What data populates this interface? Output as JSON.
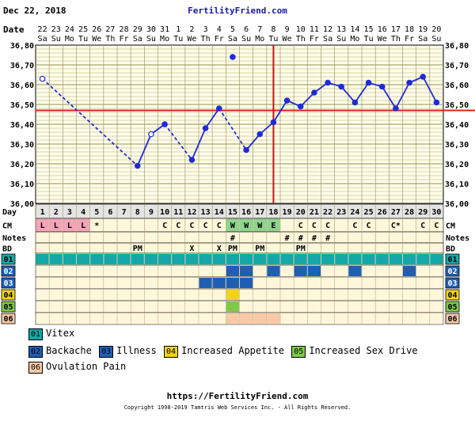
{
  "header": {
    "date": "Dec 22, 2018",
    "site": "FertilityFriend.com"
  },
  "chart_data": {
    "type": "line",
    "title": "",
    "ylim": [
      36.0,
      36.8
    ],
    "y_ticks": [
      "36,80",
      "36,70",
      "36,60",
      "36,50",
      "36,40",
      "36,30",
      "36,20",
      "36,10",
      "36,00"
    ],
    "dates": [
      "22",
      "23",
      "24",
      "25",
      "26",
      "27",
      "28",
      "29",
      "30",
      "31",
      "1",
      "2",
      "3",
      "4",
      "5",
      "6",
      "7",
      "8",
      "9",
      "10",
      "11",
      "12",
      "13",
      "14",
      "15",
      "16",
      "17",
      "18",
      "19",
      "20"
    ],
    "weekdays": [
      "Sa",
      "Su",
      "Mo",
      "Tu",
      "We",
      "Th",
      "Fr",
      "Sa",
      "Su",
      "Mo",
      "Tu",
      "We",
      "Th",
      "Fr",
      "Sa",
      "Su",
      "Mo",
      "Tu",
      "We",
      "Th",
      "Fr",
      "Sa",
      "Su",
      "Mo",
      "Tu",
      "We",
      "Th",
      "Fr",
      "Sa",
      "Su"
    ],
    "days": [
      "1",
      "2",
      "3",
      "4",
      "5",
      "6",
      "7",
      "8",
      "9",
      "10",
      "11",
      "12",
      "13",
      "14",
      "15",
      "16",
      "17",
      "18",
      "19",
      "20",
      "21",
      "22",
      "23",
      "24",
      "25",
      "26",
      "27",
      "28",
      "29",
      "30"
    ],
    "temps": [
      36.63,
      null,
      null,
      null,
      null,
      null,
      null,
      36.19,
      36.35,
      36.4,
      null,
      36.22,
      36.38,
      36.48,
      36.74,
      36.27,
      36.35,
      36.41,
      36.52,
      36.49,
      36.56,
      36.61,
      36.59,
      36.51,
      36.61,
      36.59,
      36.48,
      36.61,
      36.64,
      36.51
    ],
    "open_points": [
      1,
      9
    ],
    "discarded_day": 15,
    "coverline": 36.47,
    "ovulation_day": 18,
    "rows": {
      "labels": {
        "day": "Day",
        "cm": "CM",
        "notes": "Notes",
        "bd": "BD"
      },
      "period": [
        "L",
        "L",
        "L",
        "L",
        "*",
        "",
        "",
        "",
        "",
        "",
        "",
        "",
        "",
        "",
        "",
        "",
        "",
        "",
        "",
        "",
        "",
        "",
        "",
        "",
        "",
        "",
        "",
        "",
        "",
        ""
      ],
      "cm": [
        "",
        "",
        "",
        "",
        "",
        "",
        "",
        "",
        "",
        "C",
        "C",
        "C",
        "C",
        "C",
        "W",
        "W",
        "W",
        "E",
        "",
        "C",
        "C",
        "C",
        "",
        "C",
        "C",
        "",
        "C*",
        "",
        "C",
        "C"
      ],
      "notes": [
        "",
        "",
        "",
        "",
        "",
        "",
        "",
        "",
        "",
        "",
        "",
        "",
        "",
        "",
        "#",
        "",
        "",
        "",
        "#",
        "#",
        "#",
        "#",
        "",
        "",
        "",
        "",
        "",
        "",
        "",
        ""
      ],
      "bd": [
        "",
        "",
        "",
        "",
        "",
        "",
        "",
        "PM",
        "",
        "",
        "",
        "X",
        "",
        "X",
        "PM",
        "",
        "PM",
        "",
        "",
        "PM",
        "",
        "",
        "",
        "",
        "",
        "",
        "",
        "",
        "",
        ""
      ]
    },
    "tracks": [
      {
        "code": "01",
        "days": [
          1,
          2,
          3,
          4,
          5,
          6,
          7,
          8,
          9,
          10,
          11,
          12,
          13,
          14,
          15,
          16,
          17,
          18,
          19,
          20,
          21,
          22,
          23,
          24,
          25,
          26,
          27,
          28,
          29,
          30
        ]
      },
      {
        "code": "02",
        "days": [
          15,
          16,
          18,
          20,
          21,
          24,
          28
        ]
      },
      {
        "code": "03",
        "days": [
          13,
          14,
          15,
          16
        ]
      },
      {
        "code": "04",
        "days": [
          15
        ]
      },
      {
        "code": "05",
        "days": [
          15
        ]
      },
      {
        "code": "06",
        "days": [
          15,
          16,
          17,
          18
        ]
      }
    ]
  },
  "legend": {
    "items": [
      {
        "code": "01",
        "label": "Vitex"
      },
      {
        "code": "02",
        "label": "Backache"
      },
      {
        "code": "03",
        "label": "Illness"
      },
      {
        "code": "04",
        "label": "Increased Appetite"
      },
      {
        "code": "05",
        "label": "Increased Sex Drive"
      },
      {
        "code": "06",
        "label": "Ovulation Pain"
      }
    ]
  },
  "colors": {
    "temp_line": "#1f2bd8",
    "coverline": "#e02020",
    "ovulation": "#c81414",
    "grid": "#9a8f55",
    "plot_bg": "#fffde9",
    "row_bg": "#fff7dc",
    "day_row_bg": "#e4e4e4",
    "period": "#f4a3b8",
    "cm_fertile": "#8fd38f",
    "track_01": "#14a8a8",
    "track_02": "#1e5fb4",
    "track_03": "#1e5fb4",
    "track_04": "#f2d21a",
    "track_05": "#7ec94a",
    "track_06": "#f8c9a4"
  },
  "footer": {
    "url": "https://FertilityFriend.com",
    "copyright": "Copyright 1998-2019 Tamtris Web Services Inc. - All Rights Reserved."
  }
}
